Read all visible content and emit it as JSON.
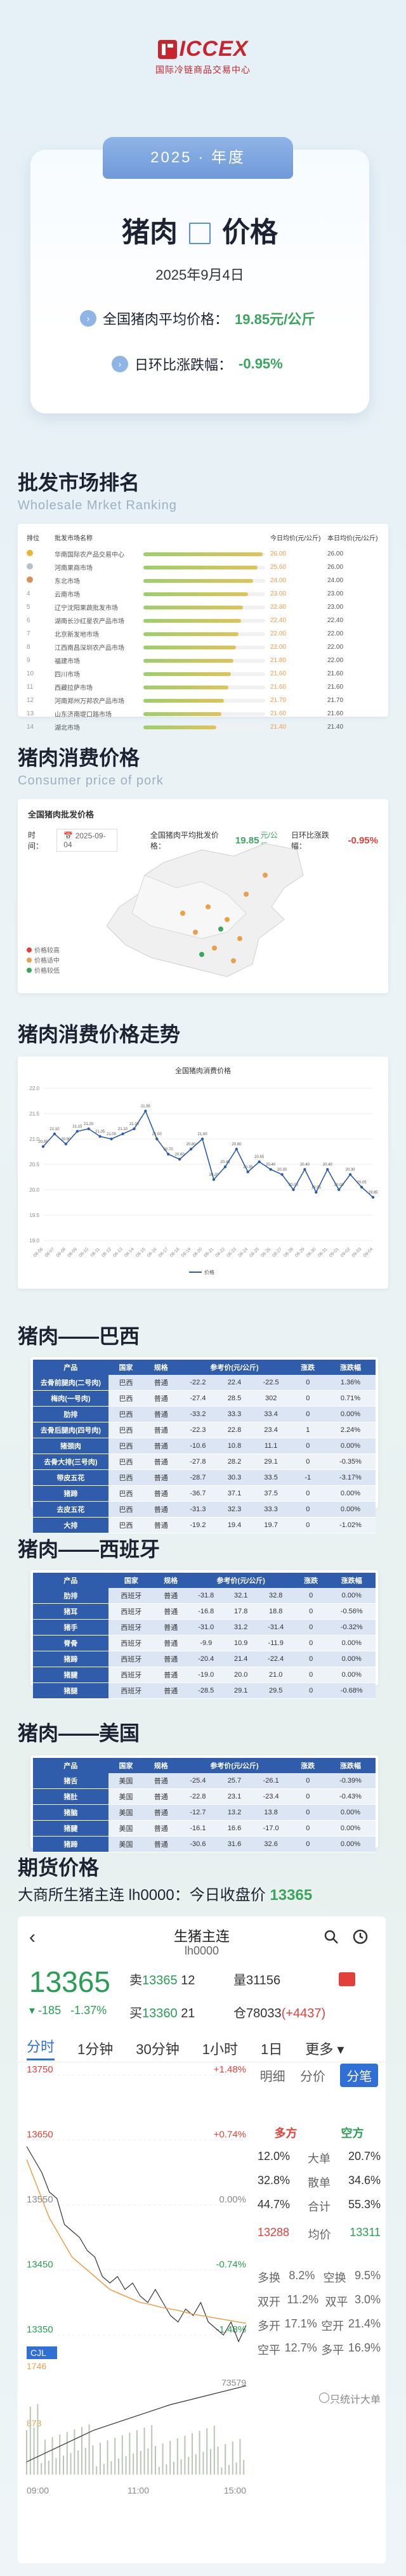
{
  "brand": {
    "name": "ICCEX",
    "subtitle": "国际冷链商品交易中心"
  },
  "hero": {
    "year_tag": "2025 · 年度",
    "title_left": "猪肉",
    "title_right": "价格",
    "date": "2025年9月4日",
    "avg_label": "全国猪肉平均价格：",
    "avg_value": "19.85元/公斤",
    "mom_label": "日环比涨跌幅：",
    "mom_value": "-0.95%"
  },
  "wholesale": {
    "title": "批发市场排名",
    "subtitle": "Wholesale Mrket Ranking",
    "headers": [
      "排位",
      "批发市场名称",
      "",
      "今日均价(元/公斤)",
      "本日均价(元/公斤)"
    ],
    "rows": [
      {
        "rank": "1",
        "name": "华南国际农产品交易中心",
        "bar": 0.98,
        "today": "26.00",
        "prev": "26.00",
        "medal": "#e9b533"
      },
      {
        "rank": "2",
        "name": "河南果商市场",
        "bar": 0.94,
        "today": "25.60",
        "prev": "26.00",
        "medal": "#b9c1c8"
      },
      {
        "rank": "3",
        "name": "东北市场",
        "bar": 0.9,
        "today": "24.00",
        "prev": "24.00",
        "medal": "#d9915b"
      },
      {
        "rank": "4",
        "name": "云南市场",
        "bar": 0.86,
        "today": "23.00",
        "prev": "23.00",
        "medal": ""
      },
      {
        "rank": "5",
        "name": "辽宁沈阳果蔬批发市场",
        "bar": 0.82,
        "today": "22.80",
        "prev": "23.00",
        "medal": ""
      },
      {
        "rank": "6",
        "name": "湖南长沙红星农产品市场",
        "bar": 0.8,
        "today": "22.40",
        "prev": "22.40",
        "medal": ""
      },
      {
        "rank": "7",
        "name": "北京新发地市场",
        "bar": 0.78,
        "today": "22.00",
        "prev": "22.00",
        "medal": ""
      },
      {
        "rank": "8",
        "name": "江西南昌深圳农产品市场",
        "bar": 0.76,
        "today": "22.00",
        "prev": "22.00",
        "medal": ""
      },
      {
        "rank": "9",
        "name": "福建市场",
        "bar": 0.74,
        "today": "21.80",
        "prev": "22.00",
        "medal": ""
      },
      {
        "rank": "10",
        "name": "四川市场",
        "bar": 0.72,
        "today": "21.60",
        "prev": "21.60",
        "medal": ""
      },
      {
        "rank": "11",
        "name": "西藏拉萨市场",
        "bar": 0.7,
        "today": "21.60",
        "prev": "21.60",
        "medal": ""
      },
      {
        "rank": "12",
        "name": "河南郑州万邦农产品市场",
        "bar": 0.66,
        "today": "21.70",
        "prev": "21.70",
        "medal": ""
      },
      {
        "rank": "13",
        "name": "山东济南堤口路市场",
        "bar": 0.64,
        "today": "21.60",
        "prev": "21.60",
        "medal": ""
      },
      {
        "rank": "14",
        "name": "湖北市场",
        "bar": 0.6,
        "today": "21.40",
        "prev": "21.40",
        "medal": ""
      }
    ]
  },
  "consume": {
    "title": "猪肉消费价格",
    "subtitle": "Consumer price of pork",
    "panel_title": "全国猪肉批发价格",
    "time_label": "时间：",
    "time_value": "2025-09-04",
    "avg_label": "全国猪肉平均批发价格：",
    "avg_value": "19.85",
    "avg_unit": "元/公斤",
    "mom_label": "日环比涨跌幅：",
    "mom_value": "-0.95%",
    "legend": [
      "价格较高",
      "价格适中",
      "价格较低"
    ]
  },
  "trend": {
    "title": "猪肉消费价格走势",
    "chart_title": "全国猪肉消费价格"
  },
  "chart_data": {
    "type": "line",
    "title": "全国猪肉消费价格",
    "x": [
      "08-06",
      "08-07",
      "08-08",
      "08-09",
      "08-10",
      "08-11",
      "08-12",
      "08-13",
      "08-14",
      "08-15",
      "08-16",
      "08-17",
      "08-18",
      "08-19",
      "08-20",
      "08-21",
      "08-22",
      "08-23",
      "08-24",
      "08-25",
      "08-26",
      "08-27",
      "08-28",
      "08-29",
      "08-30",
      "08-31",
      "09-01",
      "09-02",
      "09-03",
      "09-04"
    ],
    "series": [
      {
        "name": "价格",
        "values": [
          20.85,
          21.1,
          20.9,
          21.15,
          21.2,
          21.05,
          21.0,
          21.1,
          21.2,
          21.55,
          21.0,
          20.7,
          20.6,
          20.8,
          21.0,
          20.2,
          20.45,
          20.8,
          20.35,
          20.55,
          20.4,
          20.3,
          20.0,
          20.4,
          19.95,
          20.4,
          20.0,
          20.3,
          20.05,
          19.85
        ]
      }
    ],
    "ylim": [
      19.0,
      22.0
    ]
  },
  "brazil": {
    "title": "猪肉——巴西",
    "headers": [
      "产品",
      "国家",
      "规格",
      "参考价(元/公斤)",
      "",
      "",
      "涨跌",
      "涨跌幅"
    ],
    "rows": [
      [
        "去骨前腿肉(二号肉)",
        "巴西",
        "普通",
        "-22.2",
        "22.4",
        "-22.5",
        "0",
        "1.36%"
      ],
      [
        "梅肉(一号肉)",
        "巴西",
        "普通",
        "-27.4",
        "28.5",
        "302",
        "0",
        "0.71%"
      ],
      [
        "肋排",
        "巴西",
        "普通",
        "-33.2",
        "33.3",
        "33.4",
        "0",
        "0.00%"
      ],
      [
        "去骨后腿肉(四号肉)",
        "巴西",
        "普通",
        "-22.3",
        "22.8",
        "23.4",
        "1",
        "2.24%"
      ],
      [
        "猪颈肉",
        "巴西",
        "普通",
        "-10.6",
        "10.8",
        "11.1",
        "0",
        "0.00%"
      ],
      [
        "去骨大排(三号肉)",
        "巴西",
        "普通",
        "-27.8",
        "28.2",
        "29.1",
        "0",
        "-0.35%"
      ],
      [
        "带皮五花",
        "巴西",
        "普通",
        "-28.7",
        "30.3",
        "33.5",
        "-1",
        "-3.17%"
      ],
      [
        "猪蹄",
        "巴西",
        "普通",
        "-36.7",
        "37.1",
        "37.5",
        "0",
        "0.00%"
      ],
      [
        "去皮五花",
        "巴西",
        "普通",
        "-31.3",
        "32.3",
        "33.3",
        "0",
        "0.00%"
      ],
      [
        "大排",
        "巴西",
        "普通",
        "-19.2",
        "19.4",
        "19.7",
        "0",
        "-1.02%"
      ]
    ]
  },
  "spain": {
    "title": "猪肉——西班牙",
    "headers": [
      "产品",
      "国家",
      "规格",
      "参考价(元/公斤)",
      "",
      "",
      "涨跌",
      "涨跌幅"
    ],
    "rows": [
      [
        "肋排",
        "西班牙",
        "普通",
        "-31.8",
        "32.1",
        "32.8",
        "0",
        "0.00%"
      ],
      [
        "猪耳",
        "西班牙",
        "普通",
        "-16.8",
        "17.8",
        "18.8",
        "0",
        "-0.56%"
      ],
      [
        "猪手",
        "西班牙",
        "普通",
        "-31.0",
        "31.2",
        "-31.4",
        "0",
        "-0.32%"
      ],
      [
        "脊骨",
        "西班牙",
        "普通",
        "-9.9",
        "10.9",
        "-11.9",
        "0",
        "0.00%"
      ],
      [
        "猪蹄",
        "西班牙",
        "普通",
        "-20.4",
        "21.4",
        "-22.4",
        "0",
        "0.00%"
      ],
      [
        "猪腱",
        "西班牙",
        "普通",
        "-19.0",
        "20.0",
        "21.0",
        "0",
        "0.00%"
      ],
      [
        "猪腿",
        "西班牙",
        "普通",
        "-28.5",
        "29.1",
        "29.5",
        "0",
        "-0.68%"
      ]
    ]
  },
  "usa": {
    "title": "猪肉——美国",
    "headers": [
      "产品",
      "国家",
      "规格",
      "参考价(元/公斤)",
      "",
      "",
      "涨跌",
      "涨跌幅"
    ],
    "rows": [
      [
        "猪舌",
        "美国",
        "普通",
        "-25.4",
        "25.7",
        "-26.1",
        "0",
        "-0.39%"
      ],
      [
        "猪肚",
        "美国",
        "普通",
        "-22.8",
        "23.1",
        "-23.4",
        "0",
        "-0.43%"
      ],
      [
        "猪脑",
        "美国",
        "普通",
        "-12.7",
        "13.2",
        "13.8",
        "0",
        "0.00%"
      ],
      [
        "猪腱",
        "美国",
        "普通",
        "-16.1",
        "16.6",
        "-17.0",
        "0",
        "0.00%"
      ],
      [
        "猪蹄",
        "美国",
        "普通",
        "-30.6",
        "31.6",
        "32.6",
        "0",
        "0.00%"
      ]
    ]
  },
  "futures": {
    "title": "期货价格",
    "line_label": "大商所生猪主连 lh0000：今日收盘价",
    "line_value": "13365",
    "app": {
      "back": "‹",
      "title": "生猪主连",
      "code": "lh0000",
      "price": "13365",
      "chg": "-185",
      "chg_pct": "-1.37%",
      "sell_label": "卖",
      "sell_price": "13365",
      "sell_vol": "12",
      "buy_label": "买",
      "buy_price": "13360",
      "buy_vol": "21",
      "vol_label": "量",
      "vol": "31156",
      "oi_label": "仓",
      "oi": "78033",
      "oi_chg": "(+4437)",
      "tabs": [
        "分时",
        "1分钟",
        "30分钟",
        "1小时",
        "1日",
        "更多"
      ],
      "side_tabs": [
        "明细",
        "分价",
        "分笔"
      ],
      "side_head": [
        "多方",
        "空方"
      ],
      "side_rows": [
        [
          "12.0%",
          "大单",
          "20.7%"
        ],
        [
          "32.8%",
          "散单",
          "34.6%"
        ],
        [
          "44.7%",
          "合计",
          "55.3%"
        ]
      ],
      "low_price": "13288",
      "avg_label": "均价",
      "avg_price": "13311",
      "stats": [
        [
          "多换",
          "8.2%",
          "空换",
          "9.5%"
        ],
        [
          "双开",
          "11.2%",
          "双平",
          "3.0%"
        ],
        [
          "多开",
          "17.1%",
          "空开",
          "21.4%"
        ],
        [
          "空平",
          "12.7%",
          "多平",
          "16.9%"
        ]
      ],
      "bigonly": "只统计大单",
      "price_ticks": [
        "13750",
        "13650",
        "13550",
        "13450",
        "13350"
      ],
      "pct_ticks": [
        "+1.48%",
        "+0.74%",
        "0.00%",
        "-0.74%",
        "-1.48%"
      ],
      "vol_tag": "CJL",
      "vol_ticks": [
        "1746",
        "873"
      ],
      "oi_tick": "73579",
      "time_ticks": [
        "09:00",
        "11:00",
        "15:00"
      ],
      "price_series": [
        13640,
        13620,
        13600,
        13570,
        13560,
        13520,
        13510,
        13500,
        13480,
        13470,
        13440,
        13430,
        13440,
        13420,
        13430,
        13410,
        13400,
        13420,
        13400,
        13380,
        13370,
        13390,
        13380,
        13400,
        13370,
        13360,
        13350,
        13370,
        13340,
        13365
      ],
      "avg_series": [
        13620,
        13590,
        13560,
        13530,
        13510,
        13490,
        13470,
        13460,
        13450,
        13440,
        13430,
        13420,
        13415,
        13410,
        13405,
        13400,
        13398,
        13395,
        13392,
        13390,
        13388,
        13385,
        13382,
        13380,
        13378,
        13376,
        13374,
        13372,
        13370,
        13368
      ]
    }
  }
}
